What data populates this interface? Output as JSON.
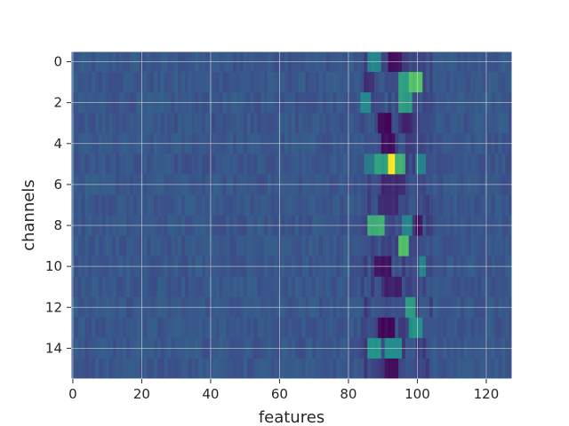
{
  "chart_data": {
    "type": "heatmap",
    "title": "",
    "xlabel": "features",
    "ylabel": "channels",
    "xlim": [
      -0.5,
      127.5
    ],
    "ylim": [
      15.5,
      -0.5
    ],
    "n_cols": 128,
    "n_rows": 16,
    "x_ticks": [
      0,
      20,
      40,
      60,
      80,
      100,
      120
    ],
    "y_ticks": [
      0,
      2,
      4,
      6,
      8,
      10,
      12,
      14
    ],
    "grid": true,
    "colormap": "viridis",
    "colormap_stops": [
      "#440154",
      "#3b528b",
      "#21918c",
      "#5ec962",
      "#fde725"
    ],
    "background_level": 0.27,
    "hotspots": [
      {
        "row": 0,
        "cols": [
          86,
          89
        ],
        "value": 0.45
      },
      {
        "row": 0,
        "cols": [
          92,
          95
        ],
        "value": 0.05
      },
      {
        "row": 1,
        "cols": [
          85,
          87
        ],
        "value": 0.15
      },
      {
        "row": 1,
        "cols": [
          98,
          101
        ],
        "value": 0.72
      },
      {
        "row": 1,
        "cols": [
          95,
          97
        ],
        "value": 0.55
      },
      {
        "row": 2,
        "cols": [
          84,
          86
        ],
        "value": 0.48
      },
      {
        "row": 2,
        "cols": [
          95,
          98
        ],
        "value": 0.55
      },
      {
        "row": 3,
        "cols": [
          89,
          92
        ],
        "value": 0.02
      },
      {
        "row": 3,
        "cols": [
          96,
          98
        ],
        "value": 0.1
      },
      {
        "row": 4,
        "cols": [
          90,
          93
        ],
        "value": 0.05
      },
      {
        "row": 5,
        "cols": [
          85,
          87
        ],
        "value": 0.4
      },
      {
        "row": 5,
        "cols": [
          88,
          91
        ],
        "value": 0.55
      },
      {
        "row": 5,
        "cols": [
          92,
          93
        ],
        "value": 1.0
      },
      {
        "row": 5,
        "cols": [
          94,
          96
        ],
        "value": 0.65
      },
      {
        "row": 5,
        "cols": [
          100,
          102
        ],
        "value": 0.45
      },
      {
        "row": 6,
        "cols": [
          90,
          96
        ],
        "value": 0.12
      },
      {
        "row": 7,
        "cols": [
          89,
          94
        ],
        "value": 0.12
      },
      {
        "row": 8,
        "cols": [
          86,
          90
        ],
        "value": 0.62
      },
      {
        "row": 8,
        "cols": [
          96,
          98
        ],
        "value": 0.45
      },
      {
        "row": 8,
        "cols": [
          100,
          101
        ],
        "value": 0.05
      },
      {
        "row": 9,
        "cols": [
          95,
          97
        ],
        "value": 0.7
      },
      {
        "row": 10,
        "cols": [
          88,
          92
        ],
        "value": 0.05
      },
      {
        "row": 10,
        "cols": [
          101,
          102
        ],
        "value": 0.45
      },
      {
        "row": 11,
        "cols": [
          91,
          95
        ],
        "value": 0.1
      },
      {
        "row": 12,
        "cols": [
          97,
          99
        ],
        "value": 0.55
      },
      {
        "row": 13,
        "cols": [
          89,
          93
        ],
        "value": 0.02
      },
      {
        "row": 13,
        "cols": [
          98,
          101
        ],
        "value": 0.5
      },
      {
        "row": 14,
        "cols": [
          86,
          89
        ],
        "value": 0.5
      },
      {
        "row": 14,
        "cols": [
          91,
          95
        ],
        "value": 0.5
      },
      {
        "row": 15,
        "cols": [
          91,
          94
        ],
        "value": 0.05
      }
    ]
  }
}
